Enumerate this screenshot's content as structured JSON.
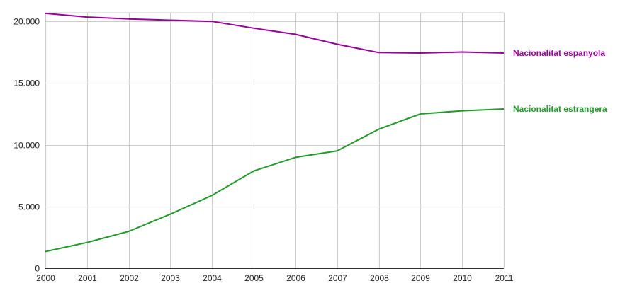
{
  "chart_data": {
    "type": "line",
    "title": "",
    "xlabel": "",
    "ylabel": "",
    "x": [
      2000,
      2001,
      2002,
      2003,
      2004,
      2005,
      2006,
      2007,
      2008,
      2009,
      2010,
      2011
    ],
    "xlim": [
      2000,
      2011
    ],
    "ylim": [
      0,
      20700
    ],
    "y_ticks": [
      {
        "value": 0,
        "label": "0"
      },
      {
        "value": 5000,
        "label": "5.000"
      },
      {
        "value": 10000,
        "label": "10.000"
      },
      {
        "value": 15000,
        "label": "15.000"
      },
      {
        "value": 20000,
        "label": "20.000"
      }
    ],
    "x_tick_labels": [
      "2000",
      "2001",
      "2002",
      "2003",
      "2004",
      "2005",
      "2006",
      "2007",
      "2008",
      "2009",
      "2010",
      "2011"
    ],
    "grid": true,
    "legend": "line-end labels at right",
    "series": [
      {
        "name": "Nacionalitat espanyola",
        "color": "#990099",
        "values": [
          20650,
          20350,
          20200,
          20100,
          20000,
          19450,
          18950,
          18150,
          17470,
          17430,
          17520,
          17430
        ]
      },
      {
        "name": "Nacionalitat estrangera",
        "color": "#22992a",
        "values": [
          1350,
          2080,
          2980,
          4380,
          5900,
          7880,
          8980,
          9500,
          11260,
          12500,
          12750,
          12900
        ]
      }
    ]
  }
}
